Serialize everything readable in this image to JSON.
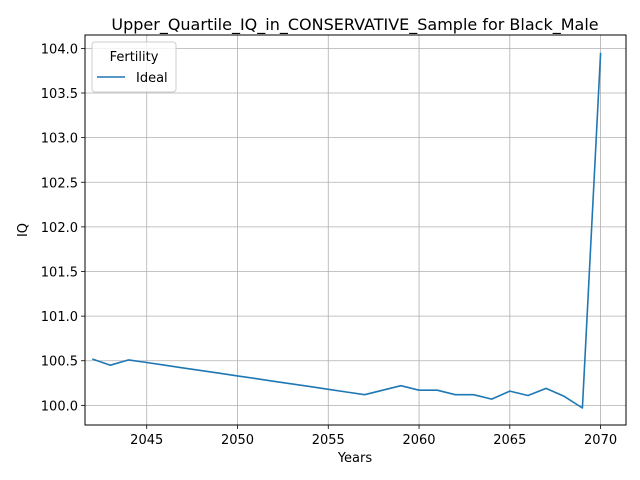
{
  "chart_data": {
    "type": "line",
    "title": "Upper_Quartile_IQ_in_CONSERVATIVE_Sample for Black_Male",
    "xlabel": "Years",
    "ylabel": "IQ",
    "xlim": [
      2041.6,
      2071.4
    ],
    "ylim": [
      99.78,
      104.15
    ],
    "xticks": [
      2045,
      2050,
      2055,
      2060,
      2065,
      2070
    ],
    "yticks": [
      100.0,
      100.5,
      101.0,
      101.5,
      102.0,
      102.5,
      103.0,
      103.5,
      104.0
    ],
    "grid": true,
    "legend": {
      "title": "Fertility",
      "position": "top-left"
    },
    "series": [
      {
        "name": "Ideal",
        "color": "#1f77b4",
        "x": [
          2042,
          2043,
          2044,
          2045,
          2046,
          2047,
          2048,
          2049,
          2050,
          2051,
          2052,
          2053,
          2054,
          2055,
          2056,
          2057,
          2058,
          2059,
          2060,
          2061,
          2062,
          2063,
          2064,
          2065,
          2066,
          2067,
          2068,
          2069,
          2070
        ],
        "y": [
          100.52,
          100.45,
          100.51,
          100.48,
          100.45,
          100.42,
          100.39,
          100.36,
          100.33,
          100.3,
          100.27,
          100.24,
          100.21,
          100.18,
          100.15,
          100.12,
          100.17,
          100.22,
          100.17,
          100.17,
          100.12,
          100.12,
          100.07,
          100.16,
          100.11,
          100.19,
          100.1,
          99.97,
          103.95
        ]
      }
    ]
  }
}
